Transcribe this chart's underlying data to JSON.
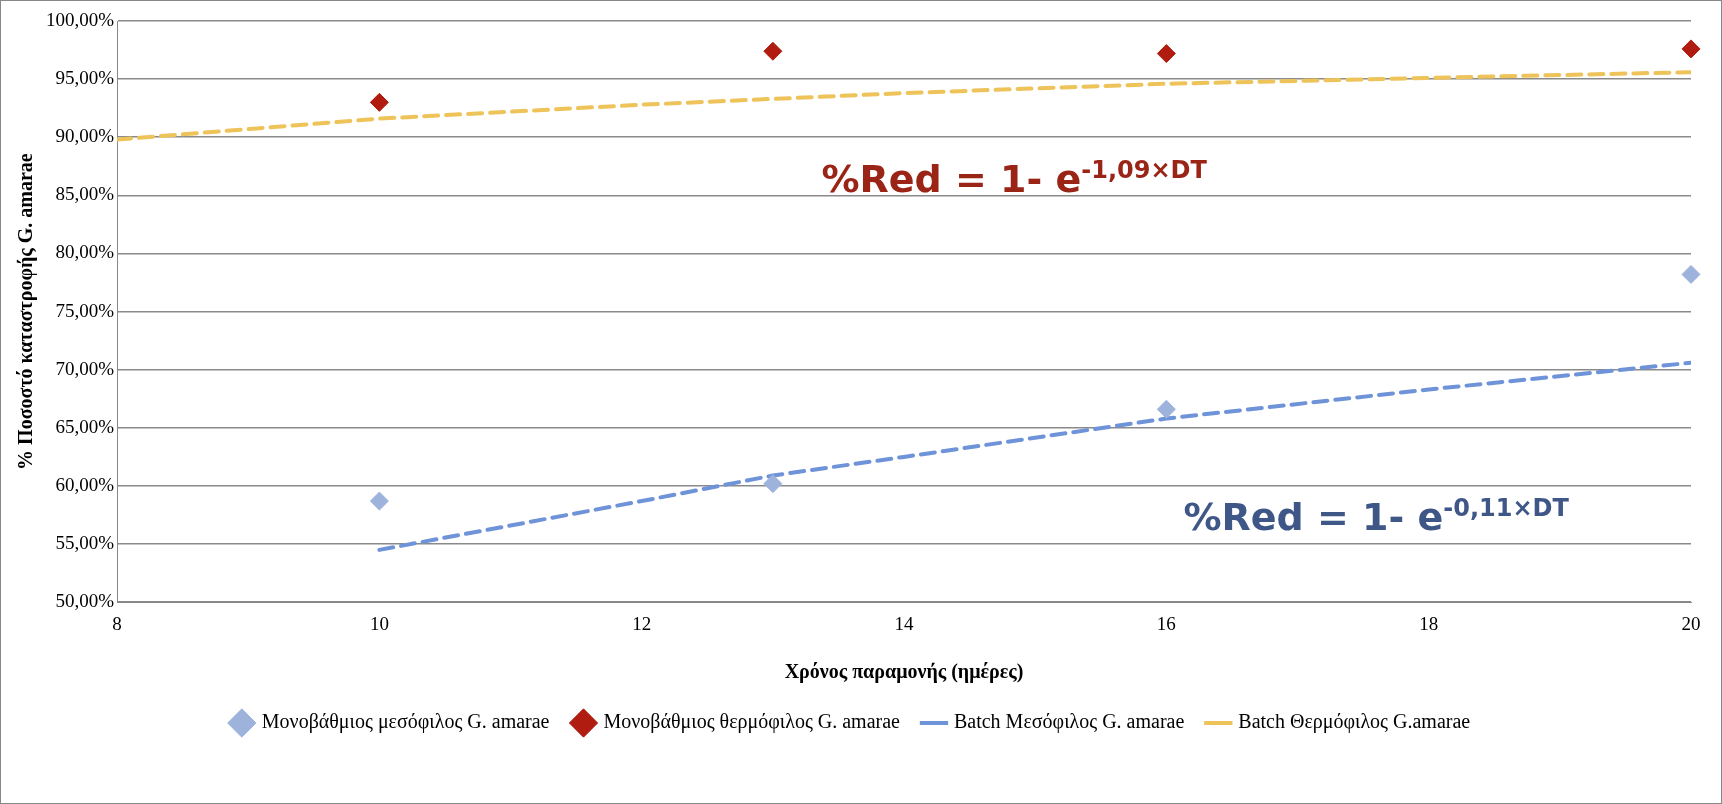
{
  "chart_data": {
    "type": "scatter",
    "ylabel": "% Ποσοστό καταστροφής G. amarae",
    "xlabel": "Χρόνος παραμονής (ημέρες)",
    "xlim": [
      8,
      20
    ],
    "xticks": [
      8,
      10,
      12,
      14,
      16,
      18,
      20
    ],
    "ylim": [
      50,
      100
    ],
    "yticks": [
      {
        "value": 50,
        "label": "50,00%"
      },
      {
        "value": 55,
        "label": "55,00%"
      },
      {
        "value": 60,
        "label": "60,00%"
      },
      {
        "value": 65,
        "label": "65,00%"
      },
      {
        "value": 70,
        "label": "70,00%"
      },
      {
        "value": 75,
        "label": "75,00%"
      },
      {
        "value": 80,
        "label": "80,00%"
      },
      {
        "value": 85,
        "label": "85,00%"
      },
      {
        "value": 90,
        "label": "90,00%"
      },
      {
        "value": 95,
        "label": "95,00%"
      },
      {
        "value": 100,
        "label": "100,00%"
      }
    ],
    "grid": "y",
    "legend": "bottom",
    "series": [
      {
        "name": "Μονοβάθμιος μεσόφιλος G. amarae",
        "marker": "diamond",
        "color": "#9eb3dc",
        "x": [
          10,
          13,
          16,
          20
        ],
        "values": [
          58.7,
          60.2,
          66.6,
          78.2
        ]
      },
      {
        "name": "Μονοβάθμιος θερμόφιλος G. amarae",
        "marker": "diamond",
        "color": "#b01c10",
        "x": [
          10,
          13,
          16,
          20
        ],
        "values": [
          93.0,
          97.4,
          97.2,
          97.6
        ]
      },
      {
        "name": "Batch Μεσόφιλος G. amarae",
        "type": "line",
        "line_style": "dashed",
        "color": "#6f93d9",
        "x": [
          10,
          12,
          13,
          14,
          16,
          18,
          20
        ],
        "values": [
          54.5,
          58.7,
          60.9,
          62.5,
          65.8,
          68.3,
          70.6
        ]
      },
      {
        "name": "Batch Θερμόφιλος G.amarae",
        "type": "line",
        "line_style": "dashed",
        "color": "#edc35a",
        "x": [
          8,
          10,
          12,
          14,
          16,
          18,
          20
        ],
        "values": [
          89.8,
          91.6,
          92.8,
          93.8,
          94.6,
          95.1,
          95.6
        ]
      }
    ],
    "annotations": [
      "%Red = 1- e$^{-1,09×DT}$",
      "%Red = 1- e$^{-0,11×DT}$"
    ]
  }
}
